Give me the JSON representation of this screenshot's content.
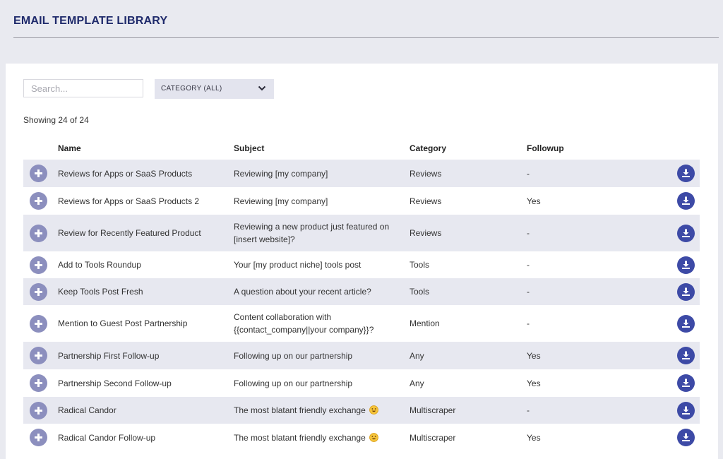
{
  "header": {
    "title": "EMAIL TEMPLATE LIBRARY"
  },
  "filters": {
    "search_placeholder": "Search...",
    "category_label": "CATEGORY (ALL)"
  },
  "showing_text": "Showing 24 of 24",
  "columns": {
    "name": "Name",
    "subject": "Subject",
    "category": "Category",
    "followup": "Followup"
  },
  "rows": [
    {
      "name": "Reviews for Apps or SaaS Products",
      "subject_lines": [
        "Reviewing [my company]"
      ],
      "category": "Reviews",
      "followup": "-"
    },
    {
      "name": "Reviews for Apps or SaaS Products 2",
      "subject_lines": [
        "Reviewing [my company]"
      ],
      "category": "Reviews",
      "followup": "Yes"
    },
    {
      "name": "Review for Recently Featured Product",
      "subject_lines": [
        "Reviewing a new product just featured on",
        "[insert website]?"
      ],
      "category": "Reviews",
      "followup": "-"
    },
    {
      "name": "Add to Tools Roundup",
      "subject_lines": [
        "Your [my product niche] tools post"
      ],
      "category": "Tools",
      "followup": "-"
    },
    {
      "name": "Keep Tools Post Fresh",
      "subject_lines": [
        "A question about your recent article?"
      ],
      "category": "Tools",
      "followup": "-"
    },
    {
      "name": "Mention to Guest Post Partnership",
      "subject_lines": [
        "Content collaboration with",
        "{{contact_company||your company}}?"
      ],
      "category": "Mention",
      "followup": "-"
    },
    {
      "name": "Partnership First Follow-up",
      "subject_lines": [
        "Following up on our partnership"
      ],
      "category": "Any",
      "followup": "Yes"
    },
    {
      "name": "Partnership Second Follow-up",
      "subject_lines": [
        "Following up on our partnership"
      ],
      "category": "Any",
      "followup": "Yes"
    },
    {
      "name": "Radical Candor",
      "subject_lines": [
        "The most blatant friendly exchange"
      ],
      "category": "Multiscraper",
      "followup": "-",
      "subject_emoji": "grinning-face-emoji"
    },
    {
      "name": "Radical Candor Follow-up",
      "subject_lines": [
        "The most blatant friendly exchange"
      ],
      "category": "Multiscraper",
      "followup": "Yes",
      "subject_emoji": "grinning-face-emoji"
    }
  ],
  "icons": {
    "row_add": "plus-icon",
    "row_download": "download-icon",
    "category_dropdown": "chevron-down-icon"
  },
  "colors": {
    "title": "#1f2a6b",
    "add_button": "#8c8fbe",
    "download_button": "#3d4aa6",
    "row_shade": "#e7e8f0",
    "page_bg": "#e9eaf0"
  }
}
